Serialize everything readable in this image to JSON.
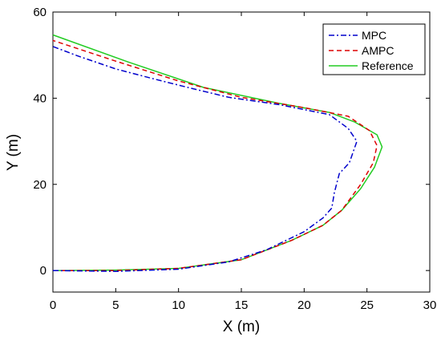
{
  "chart_data": {
    "type": "line",
    "title": "",
    "xlabel": "X (m)",
    "ylabel": "Y (m)",
    "xlim": [
      0,
      30
    ],
    "ylim": [
      -5,
      60
    ],
    "xticks": [
      0,
      5,
      10,
      15,
      20,
      25,
      30
    ],
    "yticks": [
      0,
      20,
      40,
      60
    ],
    "grid": false,
    "legend_position": "top-right",
    "series": [
      {
        "name": "MPC",
        "color": "#0000cc",
        "style": "dashdot",
        "points": [
          [
            0,
            0
          ],
          [
            5,
            -0.2
          ],
          [
            10,
            0.3
          ],
          [
            14,
            2
          ],
          [
            17,
            4.8
          ],
          [
            20,
            9
          ],
          [
            21.5,
            12.2
          ],
          [
            22.2,
            14.5
          ],
          [
            22.4,
            18
          ],
          [
            22.8,
            22.5
          ],
          [
            23.6,
            25
          ],
          [
            24.2,
            30
          ],
          [
            23.5,
            33
          ],
          [
            22,
            36.2
          ],
          [
            18,
            38.5
          ],
          [
            14,
            40.2
          ],
          [
            11,
            42.3
          ],
          [
            8,
            44.5
          ],
          [
            5,
            46.8
          ],
          [
            2,
            49.8
          ],
          [
            0,
            52
          ]
        ]
      },
      {
        "name": "AMPC",
        "color": "#dd0000",
        "style": "dashed",
        "points": [
          [
            0,
            0
          ],
          [
            5,
            0
          ],
          [
            10,
            0.5
          ],
          [
            15,
            2.5
          ],
          [
            19,
            7
          ],
          [
            21.5,
            10.5
          ],
          [
            23,
            14
          ],
          [
            24.5,
            20
          ],
          [
            25.5,
            25
          ],
          [
            25.8,
            29
          ],
          [
            25.2,
            32.5
          ],
          [
            23.5,
            35.8
          ],
          [
            20,
            37.8
          ],
          [
            15,
            40.2
          ],
          [
            10,
            44
          ],
          [
            5,
            48.6
          ],
          [
            0,
            53.4
          ]
        ]
      },
      {
        "name": "Reference",
        "color": "#22cc22",
        "style": "solid",
        "points": [
          [
            0,
            0
          ],
          [
            5,
            0.1
          ],
          [
            10,
            0.5
          ],
          [
            15,
            2.5
          ],
          [
            19,
            7
          ],
          [
            21.5,
            10.5
          ],
          [
            23,
            14
          ],
          [
            24.5,
            19
          ],
          [
            25.6,
            24
          ],
          [
            26.2,
            28.7
          ],
          [
            25.8,
            31.5
          ],
          [
            24,
            34.5
          ],
          [
            22,
            36.7
          ],
          [
            18,
            38.8
          ],
          [
            12,
            42.5
          ],
          [
            6,
            48.4
          ],
          [
            0,
            54.7
          ]
        ]
      }
    ]
  }
}
